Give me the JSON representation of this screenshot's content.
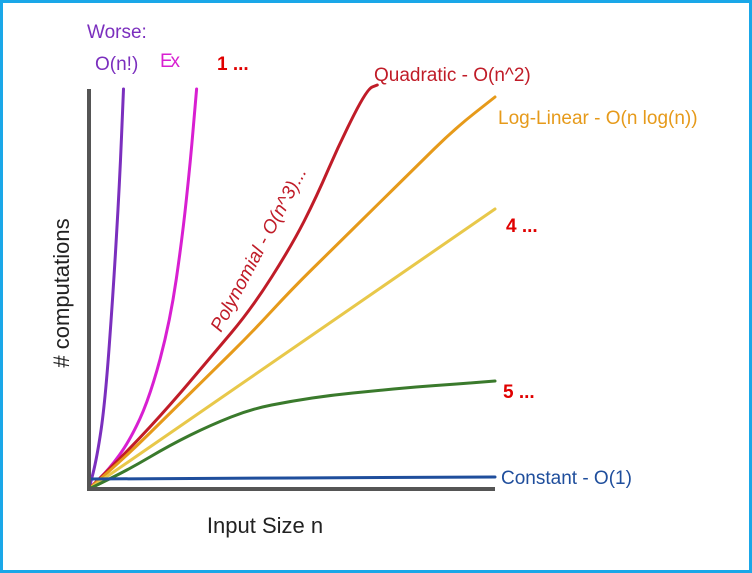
{
  "chart_data": {
    "type": "line",
    "title": "",
    "xlabel": "Input Size n",
    "ylabel": "# computations",
    "grid": false,
    "legend": "none",
    "xlim": [
      0,
      10
    ],
    "ylim": [
      0,
      10
    ],
    "series": [
      {
        "name": "Worse: O(n!)",
        "color": "#7b2fbe",
        "x": [
          0,
          0.2,
          0.4,
          0.6,
          0.75,
          0.85
        ],
        "y": [
          0,
          0.8,
          2.2,
          5.0,
          7.6,
          10.0
        ]
      },
      {
        "name": "Ex",
        "color": "#d81fd1",
        "x": [
          0,
          0.5,
          1.0,
          1.5,
          2.0,
          2.3,
          2.5,
          2.65
        ],
        "y": [
          0,
          0.5,
          1.2,
          2.3,
          4.2,
          6.3,
          8.2,
          10.0
        ]
      },
      {
        "name": "Polynomial - O(n^3)...",
        "color": "#c01c28",
        "x": [
          0,
          1,
          2,
          3,
          4,
          5,
          5.6,
          6.2,
          6.85,
          7.1
        ],
        "y": [
          0,
          1.0,
          2.1,
          3.3,
          4.5,
          6.1,
          7.3,
          8.7,
          10.0,
          10.1
        ]
      },
      {
        "name": "Log-Linear - O(n log(n))",
        "color": "#e69a1a",
        "x": [
          0,
          1,
          2,
          3,
          4,
          5,
          6,
          7,
          8,
          9,
          10
        ],
        "y": [
          0,
          0.9,
          1.9,
          2.9,
          3.9,
          5.0,
          6.0,
          7.0,
          8.0,
          9.0,
          9.8
        ]
      },
      {
        "name": "",
        "color": "#e8c84a",
        "x": [
          0,
          2,
          4,
          6,
          8,
          10
        ],
        "y": [
          0,
          1.4,
          2.8,
          4.2,
          5.6,
          7.0
        ]
      },
      {
        "name": "",
        "color": "#3a7a2c",
        "x": [
          0,
          1,
          2,
          3,
          4,
          5,
          6,
          7,
          8,
          9,
          10
        ],
        "y": [
          0,
          0.5,
          1.1,
          1.6,
          2.0,
          2.2,
          2.35,
          2.45,
          2.55,
          2.62,
          2.7
        ]
      },
      {
        "name": "Constant - O(1)",
        "color": "#1f4e9c",
        "x": [
          0,
          10
        ],
        "y": [
          0.25,
          0.3
        ]
      }
    ],
    "annotations": [
      {
        "text": "1 ...",
        "color": "#e00000"
      },
      {
        "text": "4 ...",
        "color": "#e00000"
      },
      {
        "text": "5 ...",
        "color": "#e00000"
      }
    ]
  }
}
